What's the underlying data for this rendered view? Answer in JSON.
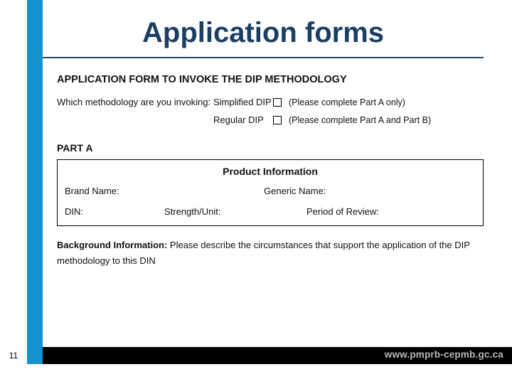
{
  "colors": {
    "title_color": "#1b3f63",
    "accent_bar": "#1593cf",
    "rule_color": "#24496e",
    "footer_bg": "#000000",
    "footer_url_color": "#b7b7b7",
    "text_color": "#111111"
  },
  "slide": {
    "title": "Application forms",
    "page_number": "11",
    "footer_url": "www.pmprb-cepmb.gc.ca"
  },
  "form": {
    "header": "APPLICATION FORM TO INVOKE THE DIP METHODOLOGY",
    "question": "Which methodology are you invoking:",
    "option1": {
      "label": "Simplified DIP",
      "note": "(Please complete Part A only)"
    },
    "option2": {
      "label": "Regular DIP",
      "note": "(Please complete Part A and Part B)"
    },
    "part_a_label": "PART A",
    "product_section_title": "Product Information",
    "fields": {
      "brand_name": "Brand Name:",
      "generic_name": "Generic Name:",
      "din": "DIN:",
      "strength_unit": "Strength/Unit:",
      "period_of_review": "Period of Review:"
    },
    "background": {
      "label": "Background Information:",
      "text": "Please describe the circumstances that support the application of the DIP",
      "text2": "methodology to this DIN"
    }
  }
}
